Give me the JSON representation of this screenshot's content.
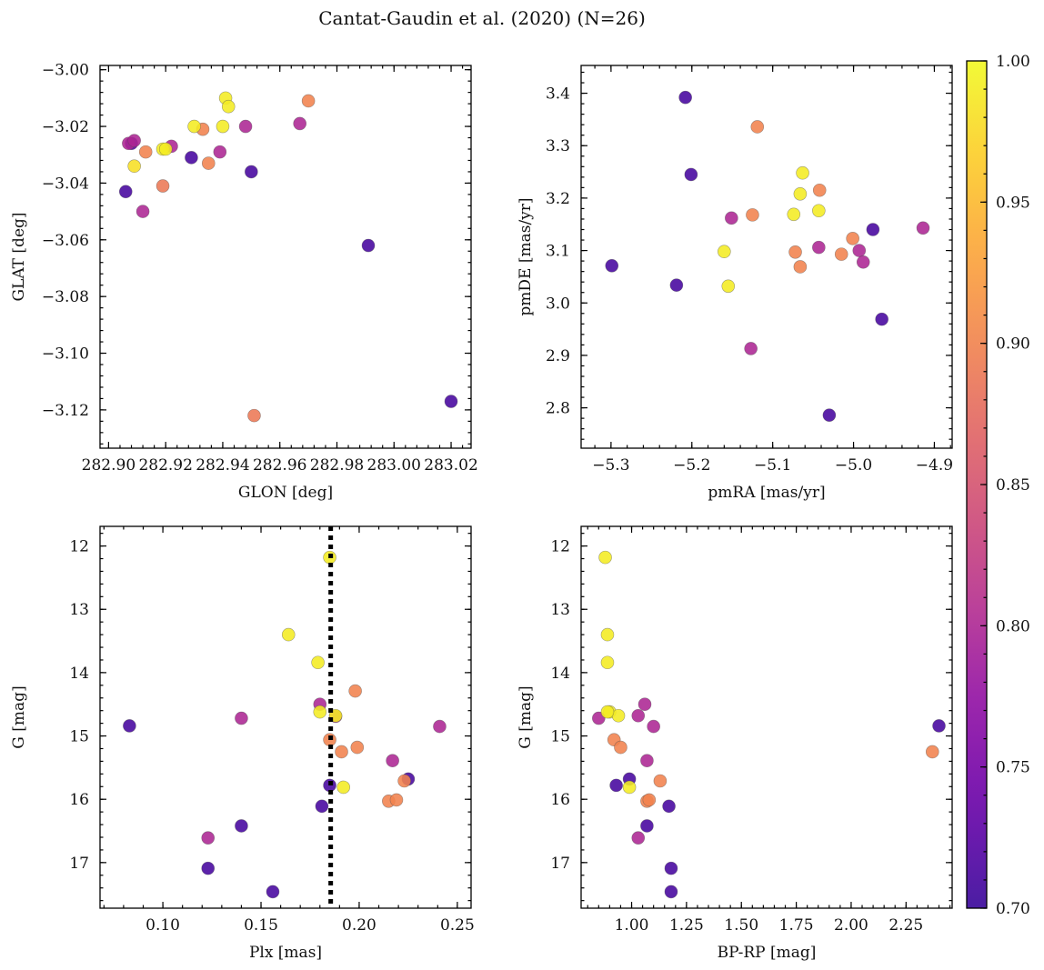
{
  "figure_title": "Cantat-Gaudin et al. (2020) (N=26)",
  "colorbar": {
    "range": [
      0.7,
      1.0
    ],
    "tick_values": [
      0.7,
      0.75,
      0.8,
      0.85,
      0.9,
      0.95,
      1.0
    ],
    "tick_labels": [
      "0.70",
      "0.75",
      "0.80",
      "0.85",
      "0.90",
      "0.95",
      "1.00"
    ],
    "colormap": "plasma"
  },
  "chart_data": [
    {
      "type": "scatter",
      "title": "",
      "xlabel": "GLON [deg]",
      "ylabel": "GLAT [deg]",
      "xlim": [
        282.897,
        283.027
      ],
      "ylim": [
        -3.1335,
        -2.9985
      ],
      "x_ticks": [
        282.9,
        282.92,
        282.94,
        282.96,
        282.98,
        283.0,
        283.02
      ],
      "x_tick_labels": [
        "282.90",
        "282.92",
        "282.94",
        "282.96",
        "282.98",
        "283.00",
        "283.02"
      ],
      "y_ticks": [
        -3.0,
        -3.02,
        -3.04,
        -3.06,
        -3.08,
        -3.1,
        -3.12
      ],
      "y_tick_labels": [
        "−3.00",
        "−3.02",
        "−3.04",
        "−3.06",
        "−3.08",
        "−3.10",
        "−3.12"
      ],
      "x": [
        282.906,
        282.908,
        282.907,
        282.919,
        282.922,
        282.933,
        282.951,
        282.991,
        283.02,
        282.913,
        282.909,
        282.935,
        282.929,
        282.909,
        282.919,
        282.941,
        282.97,
        282.95,
        282.939,
        282.912,
        282.942,
        282.92,
        282.93,
        282.94,
        282.967,
        282.948
      ],
      "y": [
        -3.043,
        -3.026,
        -3.026,
        -3.041,
        -3.027,
        -3.021,
        -3.122,
        -3.062,
        -3.117,
        -3.029,
        -3.034,
        -3.033,
        -3.031,
        -3.025,
        -3.028,
        -3.01,
        -3.011,
        -3.036,
        -3.029,
        -3.05,
        -3.013,
        -3.028,
        -3.02,
        -3.02,
        -3.019,
        -3.02
      ],
      "c": [
        0.71,
        0.72,
        0.8,
        0.89,
        0.8,
        0.9,
        0.89,
        0.71,
        0.71,
        0.9,
        0.98,
        0.9,
        0.71,
        0.8,
        0.99,
        0.99,
        0.9,
        0.71,
        0.8,
        0.8,
        0.99,
        0.99,
        0.99,
        0.99,
        0.8,
        0.8
      ]
    },
    {
      "type": "scatter",
      "title": "",
      "xlabel": "pmRA [mas/yr]",
      "ylabel": "pmDE [mas/yr]",
      "xlim": [
        -5.337,
        -4.878
      ],
      "ylim": [
        2.723,
        3.453
      ],
      "x_ticks": [
        -5.3,
        -5.2,
        -5.1,
        -5.0,
        -4.9
      ],
      "x_tick_labels": [
        "−5.3",
        "−5.2",
        "−5.1",
        "−5.0",
        "−4.9"
      ],
      "y_ticks": [
        2.8,
        2.9,
        3.0,
        3.1,
        3.2,
        3.3,
        3.4
      ],
      "y_tick_labels": [
        "2.8",
        "2.9",
        "3.0",
        "3.1",
        "3.2",
        "3.3",
        "3.4"
      ],
      "x": [
        -5.208,
        -5.201,
        -5.299,
        -5.219,
        -5.03,
        -4.976,
        -4.965,
        -5.119,
        -5.125,
        -5.072,
        -5.066,
        -5.042,
        -5.001,
        -5.015,
        -5.151,
        -5.127,
        -5.043,
        -4.993,
        -4.988,
        -4.914,
        -5.063,
        -5.066,
        -5.074,
        -5.043,
        -5.16,
        -5.155
      ],
      "y": [
        3.392,
        3.245,
        3.071,
        3.034,
        2.786,
        3.14,
        2.969,
        3.336,
        3.168,
        3.097,
        3.069,
        3.215,
        3.123,
        3.093,
        3.162,
        2.913,
        3.106,
        3.1,
        3.078,
        3.143,
        3.248,
        3.208,
        3.169,
        3.176,
        3.098,
        3.032
      ],
      "c": [
        0.71,
        0.71,
        0.71,
        0.71,
        0.71,
        0.71,
        0.71,
        0.9,
        0.9,
        0.9,
        0.9,
        0.9,
        0.9,
        0.9,
        0.8,
        0.8,
        0.8,
        0.8,
        0.8,
        0.8,
        0.99,
        0.99,
        0.99,
        0.99,
        0.99,
        0.99
      ]
    },
    {
      "type": "scatter",
      "title": "",
      "xlabel": "Plx [mas]",
      "ylabel": "G [mag]",
      "xlim": [
        0.068,
        0.257
      ],
      "ylim": [
        17.72,
        11.69
      ],
      "x_ticks": [
        0.1,
        0.15,
        0.2,
        0.25
      ],
      "x_tick_labels": [
        "0.10",
        "0.15",
        "0.20",
        "0.25"
      ],
      "y_ticks": [
        12,
        13,
        14,
        15,
        16,
        17
      ],
      "y_tick_labels": [
        "12",
        "13",
        "14",
        "15",
        "16",
        "17"
      ],
      "vline_x": 0.1855,
      "x": [
        0.083,
        0.14,
        0.123,
        0.156,
        0.181,
        0.185,
        0.225,
        0.198,
        0.185,
        0.191,
        0.199,
        0.215,
        0.219,
        0.223,
        0.14,
        0.123,
        0.18,
        0.188,
        0.217,
        0.241,
        0.185,
        0.164,
        0.179,
        0.18,
        0.188,
        0.192
      ],
      "y": [
        14.84,
        16.42,
        17.09,
        17.46,
        16.11,
        15.78,
        15.68,
        14.29,
        15.06,
        15.25,
        15.18,
        16.03,
        16.01,
        15.71,
        14.72,
        16.61,
        14.5,
        14.69,
        15.39,
        14.85,
        12.18,
        13.4,
        13.84,
        14.62,
        14.68,
        15.81
      ],
      "c": [
        0.71,
        0.71,
        0.71,
        0.71,
        0.71,
        0.71,
        0.71,
        0.9,
        0.9,
        0.9,
        0.9,
        0.9,
        0.9,
        0.9,
        0.8,
        0.8,
        0.8,
        0.8,
        0.8,
        0.8,
        0.99,
        0.99,
        0.99,
        0.99,
        0.99,
        0.99
      ]
    },
    {
      "type": "scatter",
      "title": "",
      "xlabel": "BP-RP [mag]",
      "ylabel": "G [mag]",
      "xlim": [
        0.77,
        2.46
      ],
      "ylim": [
        17.72,
        11.69
      ],
      "x_ticks": [
        1.0,
        1.25,
        1.5,
        1.75,
        2.0,
        2.25
      ],
      "x_tick_labels": [
        "1.00",
        "1.25",
        "1.50",
        "1.75",
        "2.00",
        "2.25"
      ],
      "y_ticks": [
        12,
        13,
        14,
        15,
        16,
        17
      ],
      "y_tick_labels": [
        "12",
        "13",
        "14",
        "15",
        "16",
        "17"
      ],
      "x": [
        0.93,
        0.99,
        1.07,
        1.17,
        1.18,
        1.18,
        2.4,
        0.92,
        0.95,
        1.07,
        1.08,
        1.13,
        2.37,
        0.85,
        1.03,
        1.06,
        1.1,
        1.07,
        1.03,
        0.88,
        0.89,
        0.89,
        0.9,
        0.94,
        0.99,
        0.89
      ],
      "y": [
        15.78,
        15.68,
        16.42,
        16.11,
        17.09,
        17.46,
        14.84,
        15.06,
        15.18,
        16.03,
        16.01,
        15.71,
        15.25,
        14.72,
        14.68,
        14.5,
        14.85,
        15.39,
        16.61,
        12.18,
        13.4,
        13.84,
        14.62,
        14.68,
        15.81,
        14.62
      ],
      "c": [
        0.71,
        0.71,
        0.71,
        0.71,
        0.71,
        0.71,
        0.71,
        0.9,
        0.9,
        0.9,
        0.9,
        0.9,
        0.9,
        0.8,
        0.8,
        0.8,
        0.8,
        0.8,
        0.8,
        0.99,
        0.99,
        0.99,
        0.99,
        0.99,
        0.99,
        0.99
      ]
    }
  ]
}
